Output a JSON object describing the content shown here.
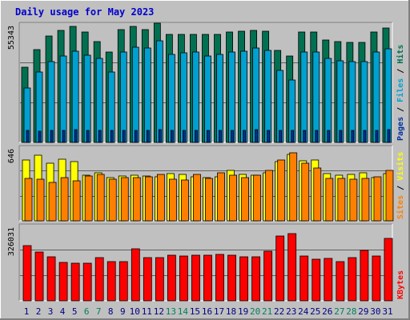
{
  "title": "Daily usage for May 2023",
  "colors": {
    "background": "#c0c0c0",
    "title": "#0000cc",
    "hits": "#007050",
    "files": "#00a0d0",
    "pages": "#0030a0",
    "visits": "#ffff00",
    "sites": "#ff8000",
    "kbytes": "#ff0000",
    "weekday_label": "#000080",
    "weekend_label": "#00805c"
  },
  "chart_data": {
    "type": "bar",
    "days": [
      "1",
      "2",
      "3",
      "4",
      "5",
      "6",
      "7",
      "8",
      "9",
      "10",
      "11",
      "12",
      "13",
      "14",
      "15",
      "16",
      "17",
      "18",
      "19",
      "20",
      "21",
      "22",
      "23",
      "24",
      "25",
      "26",
      "27",
      "28",
      "29",
      "30",
      "31"
    ],
    "weekend_days": [
      6,
      7,
      13,
      14,
      20,
      21,
      27,
      28
    ],
    "panels": [
      {
        "id": "hits_files_pages",
        "scale_label": "55343",
        "ymax": 55343,
        "series": [
          {
            "name": "Hits",
            "values": [
              35300,
              43700,
              49900,
              52800,
              54700,
              51800,
              47300,
              42400,
              53200,
              54700,
              53200,
              56000,
              50700,
              50800,
              50900,
              50700,
              50800,
              51800,
              52300,
              52800,
              52300,
              43300,
              40800,
              51800,
              51800,
              48300,
              47300,
              46900,
              46900,
              51800,
              54000
            ]
          },
          {
            "name": "Files",
            "values": [
              25700,
              33300,
              38100,
              40800,
              43000,
              41100,
              39400,
              33300,
              42400,
              44800,
              44600,
              47700,
              41500,
              42200,
              42500,
              40800,
              41300,
              42500,
              43000,
              44600,
              43300,
              33700,
              29400,
              42700,
              42500,
              39700,
              38500,
              38000,
              38000,
              42500,
              44000
            ]
          },
          {
            "name": "Pages",
            "values": [
              5500,
              5400,
              5600,
              5800,
              5900,
              5600,
              5700,
              5600,
              5700,
              5800,
              5800,
              5900,
              5800,
              5600,
              5700,
              5600,
              5700,
              5800,
              5800,
              5900,
              5800,
              5600,
              5800,
              5700,
              5800,
              5800,
              5700,
              5800,
              5700,
              5800,
              5900
            ]
          }
        ],
        "legend": [
          "Pages",
          "Files",
          "Hits"
        ]
      },
      {
        "id": "visits_sites",
        "scale_label": "646",
        "ymax": 646,
        "series": [
          {
            "name": "Visits",
            "values": [
              539,
              581,
              511,
              546,
              526,
              407,
              426,
              386,
              400,
              402,
              400,
              391,
              418,
              414,
              390,
              385,
              389,
              445,
              414,
              408,
              423,
              522,
              586,
              535,
              537,
              420,
              408,
              411,
              423,
              386,
              420
            ]
          },
          {
            "name": "Sites",
            "values": [
              376,
              371,
              338,
              384,
              356,
              400,
              409,
              371,
              382,
              386,
              390,
              415,
              370,
              361,
              414,
              378,
              423,
              404,
              382,
              408,
              446,
              543,
              600,
              510,
              466,
              373,
              375,
              370,
              373,
              389,
              445
            ]
          }
        ],
        "legend": [
          "Sites",
          "Visits"
        ]
      },
      {
        "id": "kbytes",
        "scale_label": "326031",
        "ymax": 326031,
        "series": [
          {
            "name": "KBytes",
            "values": [
              241000,
              215000,
              192000,
              170000,
              164000,
              166000,
              189000,
              173000,
              171000,
              227000,
              188000,
              191000,
              201000,
              196000,
              200000,
              201000,
              202000,
              199000,
              192000,
              193000,
              219000,
              285000,
              293000,
              195000,
              182000,
              187000,
              171000,
              191000,
              222000,
              195000,
              272000
            ]
          }
        ],
        "legend": [
          "KBytes"
        ]
      }
    ]
  }
}
